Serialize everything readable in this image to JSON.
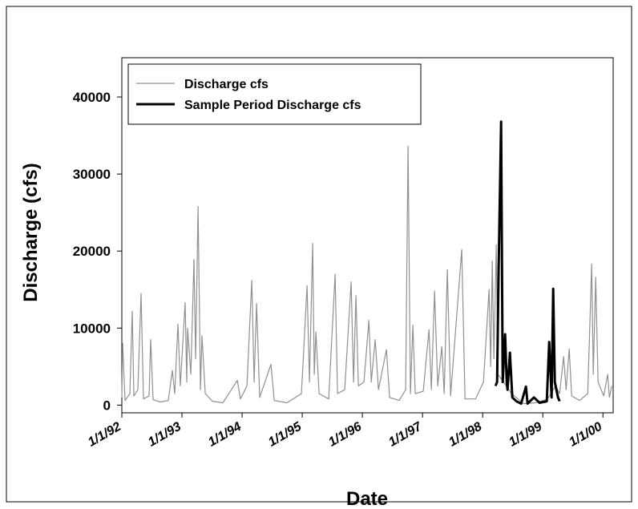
{
  "chart_data": {
    "type": "line",
    "x_label": "Date",
    "y_label": "Discharge (cfs)",
    "xlim": [
      1992,
      2000.17
    ],
    "ylim": [
      -1000,
      45100
    ],
    "xticks": [
      {
        "value": 1992,
        "label": "1/1/92"
      },
      {
        "value": 1993,
        "label": "1/1/93"
      },
      {
        "value": 1994,
        "label": "1/1/94"
      },
      {
        "value": 1995,
        "label": "1/1/95"
      },
      {
        "value": 1996,
        "label": "1/1/96"
      },
      {
        "value": 1997,
        "label": "1/1/97"
      },
      {
        "value": 1998,
        "label": "1/1/98"
      },
      {
        "value": 1999,
        "label": "1/1/99"
      },
      {
        "value": 2000,
        "label": "1/1/00"
      }
    ],
    "yticks": [
      0,
      10000,
      20000,
      30000,
      40000
    ],
    "legend_position": "upper-left",
    "series": [
      {
        "name": "Discharge cfs",
        "color": "#909090",
        "width": 1.2,
        "x": [
          1992.0,
          1992.013,
          1992.053,
          1992.133,
          1992.173,
          1992.2,
          1992.267,
          1992.32,
          1992.36,
          1992.453,
          1992.48,
          1992.52,
          1992.64,
          1992.773,
          1992.84,
          1992.88,
          1992.933,
          1992.973,
          1993.053,
          1993.08,
          1993.093,
          1993.147,
          1993.2,
          1993.227,
          1993.267,
          1993.307,
          1993.333,
          1993.387,
          1993.507,
          1993.68,
          1993.92,
          1993.973,
          1994.08,
          1994.16,
          1994.2,
          1994.24,
          1994.293,
          1994.48,
          1994.533,
          1994.747,
          1994.987,
          1995.08,
          1995.12,
          1995.173,
          1995.2,
          1995.227,
          1995.28,
          1995.44,
          1995.547,
          1995.587,
          1995.707,
          1995.813,
          1995.853,
          1995.893,
          1995.933,
          1996.027,
          1996.107,
          1996.147,
          1996.213,
          1996.267,
          1996.4,
          1996.453,
          1996.613,
          1996.72,
          1996.76,
          1996.8,
          1996.84,
          1996.88,
          1997.013,
          1997.107,
          1997.147,
          1997.2,
          1997.253,
          1997.32,
          1997.36,
          1997.413,
          1997.467,
          1997.653,
          1997.707,
          1997.88,
          1998.013,
          1998.107,
          1998.133,
          1998.16,
          1998.187,
          1998.227,
          1998.253,
          1998.347,
          1998.48,
          1998.68,
          1998.88,
          1999.08,
          1999.213,
          1999.28,
          1999.347,
          1999.387,
          1999.44,
          1999.48,
          1999.613,
          1999.747,
          1999.813,
          1999.84,
          1999.88,
          1999.92,
          2000.013,
          2000.08,
          2000.107,
          2000.147
        ],
        "values": [
          1000,
          8000,
          600,
          1500,
          12200,
          1200,
          2000,
          14500,
          800,
          1200,
          8500,
          700,
          400,
          600,
          4500,
          1500,
          10500,
          2500,
          13300,
          3000,
          10000,
          4000,
          18900,
          6000,
          25800,
          2000,
          9000,
          1500,
          500,
          300,
          3200,
          800,
          2500,
          16200,
          3000,
          13200,
          1000,
          5300,
          600,
          300,
          1500,
          15500,
          3000,
          21000,
          4000,
          9500,
          1500,
          800,
          17000,
          1500,
          2000,
          16000,
          3000,
          14200,
          2500,
          3000,
          11000,
          3000,
          8500,
          2000,
          7200,
          1000,
          600,
          2000,
          33600,
          1500,
          10400,
          1500,
          1800,
          9800,
          2000,
          14800,
          2500,
          7600,
          1500,
          17600,
          1200,
          20200,
          800,
          800,
          3000,
          15000,
          5000,
          18700,
          6000,
          20800,
          4000,
          3000,
          1500,
          200,
          300,
          800,
          2500,
          1500,
          6300,
          2000,
          7300,
          1200,
          600,
          1500,
          18300,
          4000,
          16600,
          3000,
          1200,
          4000,
          1000,
          2500
        ]
      },
      {
        "name": "Sample Period Discharge cfs",
        "color": "#000000",
        "width": 3,
        "x": [
          1998.213,
          1998.24,
          1998.267,
          1998.307,
          1998.333,
          1998.373,
          1998.4,
          1998.413,
          1998.453,
          1998.493,
          1998.56,
          1998.64,
          1998.72,
          1998.747,
          1998.853,
          1998.947,
          1999.067,
          1999.107,
          1999.147,
          1999.173,
          1999.2,
          1999.253,
          1999.28
        ],
        "values": [
          2500,
          3000,
          18300,
          36800,
          3000,
          9200,
          3000,
          2000,
          6800,
          1000,
          500,
          200,
          2400,
          200,
          1000,
          300,
          500,
          8200,
          1000,
          15100,
          3000,
          1000,
          500
        ]
      }
    ]
  }
}
